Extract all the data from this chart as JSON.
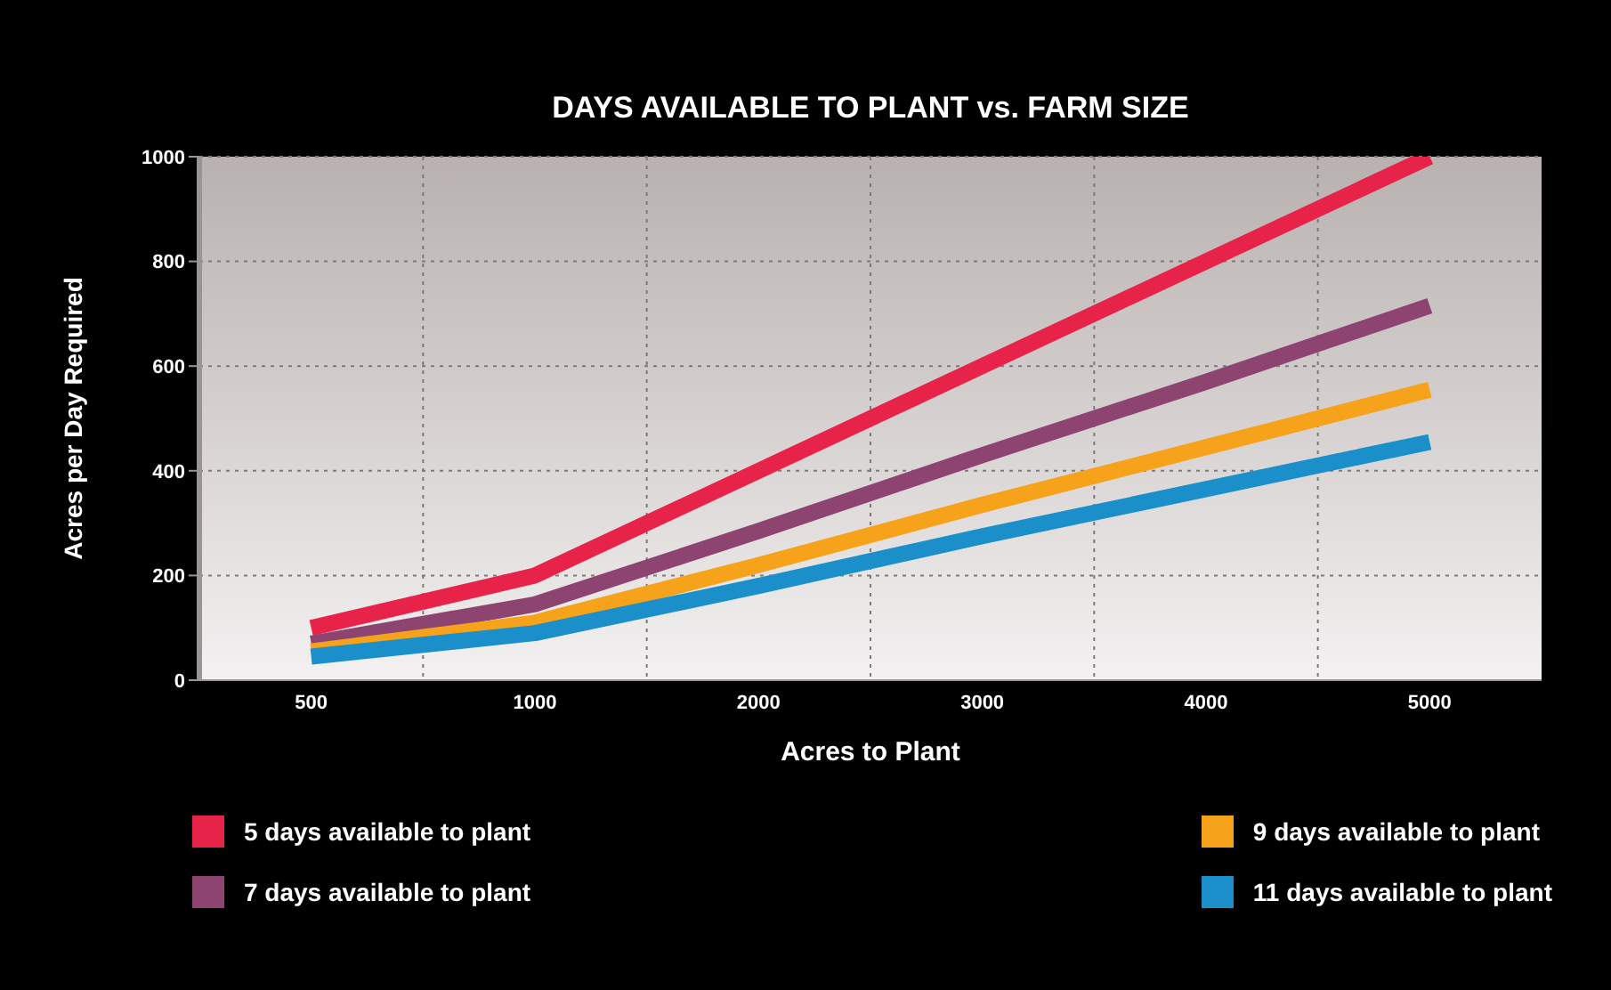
{
  "chart_data": {
    "type": "line",
    "title": "DAYS AVAILABLE TO PLANT vs. FARM SIZE",
    "xlabel": "Acres to Plant",
    "ylabel": "Acres per Day Required",
    "categories": [
      "500",
      "1000",
      "2000",
      "3000",
      "4000",
      "5000"
    ],
    "series": [
      {
        "name": "5 days available to plant",
        "color": "#e8234a",
        "values": [
          100,
          200,
          400,
          600,
          800,
          1000
        ]
      },
      {
        "name": "7 days available to plant",
        "color": "#8e4470",
        "values": [
          70,
          145,
          285,
          430,
          570,
          715
        ]
      },
      {
        "name": "9 days available to plant",
        "color": "#f7a21b",
        "values": [
          55,
          110,
          220,
          335,
          445,
          555
        ]
      },
      {
        "name": "11 days available to plant",
        "color": "#1a8fc9",
        "values": [
          45,
          90,
          180,
          275,
          365,
          455
        ]
      }
    ],
    "ylim": [
      0,
      1000
    ],
    "yticks": [
      0,
      200,
      400,
      600,
      800,
      1000
    ],
    "grid": true,
    "legend": "bottom",
    "marker": "none",
    "line_style": "solid"
  }
}
